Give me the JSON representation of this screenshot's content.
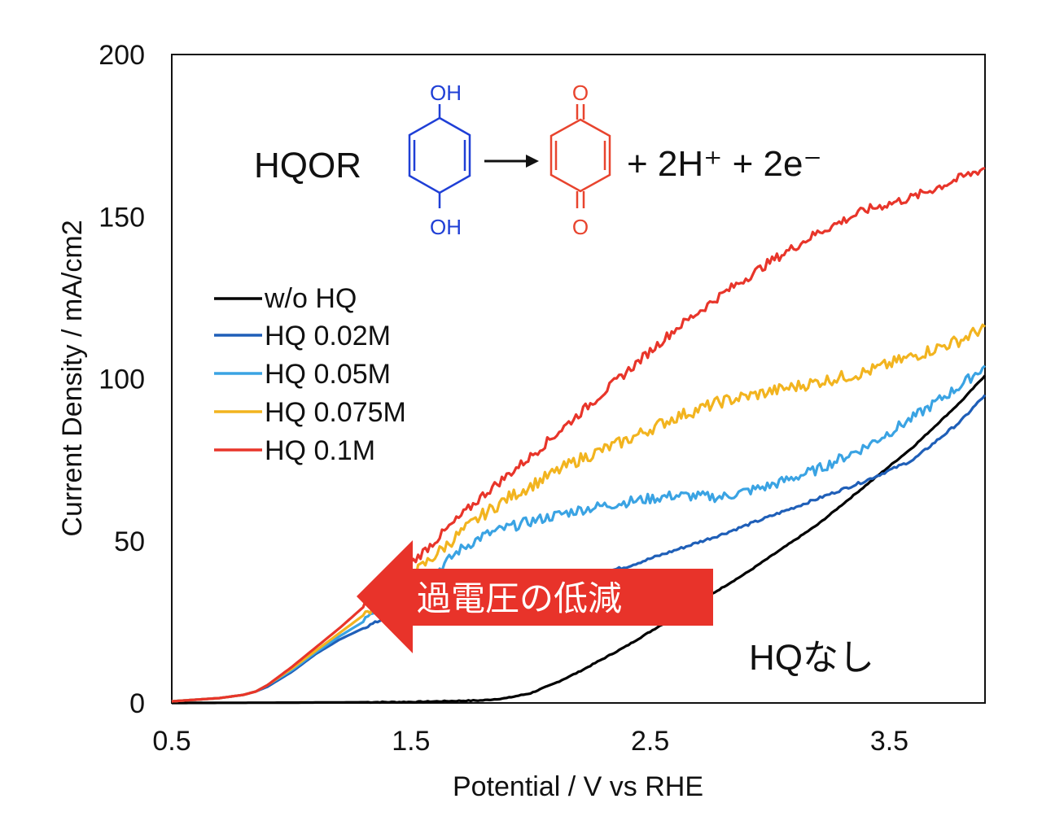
{
  "chart_data": {
    "type": "line",
    "xlabel": "Potential / V vs RHE",
    "ylabel": "Current Density / mA/cm2",
    "xlim": [
      0.5,
      3.9
    ],
    "ylim": [
      0,
      200
    ],
    "xticks": [
      "0.5",
      "1.5",
      "2.5",
      "3.5"
    ],
    "xtick_values": [
      0.5,
      1.5,
      2.5,
      3.5
    ],
    "yticks": [
      "0",
      "50",
      "100",
      "150",
      "200"
    ],
    "ytick_values": [
      0,
      50,
      100,
      150,
      200
    ],
    "grid": false,
    "legend_position": "left",
    "series": [
      {
        "name": "w/o HQ",
        "color": "#000000",
        "x": [
          0.5,
          1.0,
          1.5,
          1.8,
          1.9,
          2.0,
          2.1,
          2.2,
          2.3,
          2.4,
          2.5,
          2.6,
          2.7,
          2.8,
          2.9,
          3.0,
          3.1,
          3.2,
          3.3,
          3.4,
          3.5,
          3.6,
          3.7,
          3.8,
          3.9
        ],
        "y": [
          0,
          0.1,
          0.3,
          0.8,
          1.5,
          3,
          6,
          9.5,
          13.5,
          17.5,
          22,
          26.5,
          31,
          35.5,
          40,
          45,
          50,
          55,
          61,
          67,
          73,
          79,
          86,
          93,
          101
        ]
      },
      {
        "name": "HQ 0.02M",
        "color": "#1f5fb8",
        "x": [
          0.5,
          0.6,
          0.7,
          0.8,
          0.85,
          0.9,
          1.0,
          1.1,
          1.2,
          1.3,
          1.4,
          1.5,
          1.6,
          1.7,
          1.8,
          1.9,
          2.0,
          2.2,
          2.4,
          2.6,
          2.8,
          3.0,
          3.2,
          3.4,
          3.6,
          3.8,
          3.9
        ],
        "y": [
          0.5,
          1,
          1.5,
          2.5,
          3.5,
          5,
          9.5,
          15,
          19.5,
          23,
          26.5,
          29.5,
          31.5,
          33,
          34,
          35,
          36,
          38.5,
          42,
          47,
          52,
          57.5,
          63,
          68.5,
          75,
          87,
          95
        ]
      },
      {
        "name": "HQ 0.05M",
        "color": "#3aa3e3",
        "x": [
          0.5,
          0.6,
          0.7,
          0.8,
          0.85,
          0.9,
          1.0,
          1.1,
          1.2,
          1.3,
          1.4,
          1.5,
          1.6,
          1.7,
          1.8,
          1.9,
          2.0,
          2.2,
          2.4,
          2.6,
          2.8,
          3.0,
          3.2,
          3.4,
          3.6,
          3.8,
          3.9
        ],
        "y": [
          0.5,
          1,
          1.5,
          2.5,
          3.5,
          5.5,
          10,
          15.5,
          20.5,
          25,
          29.5,
          34,
          40,
          47,
          51.5,
          54,
          56,
          59.5,
          62,
          64,
          63.5,
          67,
          72,
          79,
          88,
          98,
          104
        ]
      },
      {
        "name": "HQ 0.075M",
        "color": "#f2b41f",
        "x": [
          0.5,
          0.6,
          0.7,
          0.8,
          0.85,
          0.9,
          1.0,
          1.1,
          1.2,
          1.3,
          1.4,
          1.5,
          1.6,
          1.7,
          1.8,
          1.9,
          2.0,
          2.2,
          2.4,
          2.6,
          2.8,
          3.0,
          3.2,
          3.4,
          3.6,
          3.8,
          3.9
        ],
        "y": [
          0.5,
          1,
          1.5,
          2.5,
          3.5,
          5.5,
          10.5,
          16,
          21.5,
          27,
          33,
          39,
          45.5,
          52,
          58,
          63,
          67,
          75,
          81,
          88,
          93,
          96,
          99,
          102,
          107,
          112,
          116
        ]
      },
      {
        "name": "HQ 0.1M",
        "color": "#e8352a",
        "x": [
          0.5,
          0.6,
          0.7,
          0.8,
          0.85,
          0.9,
          1.0,
          1.1,
          1.2,
          1.3,
          1.4,
          1.5,
          1.6,
          1.7,
          1.8,
          1.9,
          2.0,
          2.2,
          2.4,
          2.6,
          2.8,
          3.0,
          3.2,
          3.4,
          3.6,
          3.8,
          3.9
        ],
        "y": [
          0.5,
          1,
          1.5,
          2.5,
          3.5,
          5.5,
          11,
          17,
          23,
          29.5,
          36,
          43,
          50,
          57,
          64,
          70,
          76,
          89,
          102,
          115,
          126,
          136,
          145,
          152,
          156,
          162,
          165
        ]
      }
    ],
    "annotations": {
      "reaction_label": "HQOR",
      "reactant_top": "OH",
      "reactant_bottom": "OH",
      "product_top": "O",
      "product_bottom": "O",
      "reaction_rhs": "+ 2H⁺ + 2e⁻",
      "arrow_label": "過電圧の低減",
      "no_hq_label": "HQなし"
    }
  },
  "colors": {
    "axis": "#111111",
    "arrow": "#e8332a",
    "reactant": "#1f3fd6",
    "product": "#e8442e"
  }
}
